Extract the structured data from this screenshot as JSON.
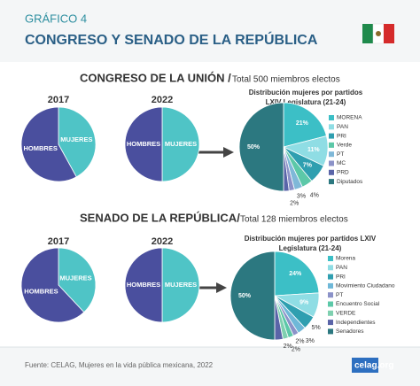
{
  "header": {
    "kicker": "GRÁFICO 4",
    "title": "CONGRESO Y SENADO DE LA REPÚBLICA"
  },
  "sections": [
    {
      "title": "CONGRESO DE LA UNIÓN /",
      "subtitle": "Total 500 miembros electos"
    },
    {
      "title": "SENADO DE LA REPÚBLICA/",
      "subtitle": "Total 128 miembros electos"
    }
  ],
  "chart_data": [
    {
      "type": "pie",
      "title": "2017",
      "categories": [
        "MUJERES",
        "HOMBRES"
      ],
      "values": [
        42,
        58
      ],
      "colors": [
        "#4fc4c6",
        "#4a4f9e"
      ]
    },
    {
      "type": "pie",
      "title": "2022",
      "categories": [
        "MUJERES",
        "HOMBRES"
      ],
      "values": [
        50,
        50
      ],
      "colors": [
        "#4fc4c6",
        "#4a4f9e"
      ]
    },
    {
      "type": "pie",
      "title": [
        "Distribución mujeres por partidos",
        "LXIV Legislatura (21-24)"
      ],
      "categories": [
        "MORENA",
        "PAN",
        "PRI",
        "Verde",
        "PT",
        "MC",
        "PRD",
        "Diputados"
      ],
      "values": [
        21,
        11,
        7,
        4,
        3,
        2,
        2,
        50
      ],
      "value_labels": [
        "21%",
        "11%",
        "7%",
        "4%",
        "3%",
        "2%",
        null,
        "50%"
      ],
      "colors": [
        "#3cbfc6",
        "#8fdde4",
        "#2f9fb0",
        "#5cc8a8",
        "#7fb8d8",
        "#8b92c8",
        "#5a64a8",
        "#2c7880"
      ],
      "legend": true
    },
    {
      "type": "pie",
      "title": "2017",
      "categories": [
        "MUJERES",
        "HOMBRES"
      ],
      "values": [
        38,
        62
      ],
      "colors": [
        "#4fc4c6",
        "#4a4f9e"
      ]
    },
    {
      "type": "pie",
      "title": "2022",
      "categories": [
        "MUJERES",
        "HOMBRES"
      ],
      "values": [
        50,
        50
      ],
      "colors": [
        "#4fc4c6",
        "#4a4f9e"
      ]
    },
    {
      "type": "pie",
      "title": [
        "Distribución mujeres por partidos LXIV",
        "Legislatura (21-24)"
      ],
      "categories": [
        "Morena",
        "PAN",
        "PRI",
        "Movimiento Ciudadano",
        "PT",
        "Encuentro Social",
        "VERDE",
        "Independientes",
        "Senadores"
      ],
      "values": [
        24,
        9,
        5,
        3,
        2,
        2,
        2,
        3,
        50
      ],
      "value_labels": [
        "24%",
        "9%",
        "5%",
        "3%",
        "2%",
        "2%",
        "2%",
        null,
        "50%"
      ],
      "colors": [
        "#3cbfc6",
        "#8fdde4",
        "#2f9fb0",
        "#6fb8d8",
        "#8b92c8",
        "#5cc8a8",
        "#7fd0b0",
        "#5a64a8",
        "#2c7880"
      ],
      "legend": true
    }
  ],
  "footer": {
    "source": "Fuente: CELAG, Mujeres en la vida pública mexicana, 2022",
    "logo": "celag.org"
  }
}
